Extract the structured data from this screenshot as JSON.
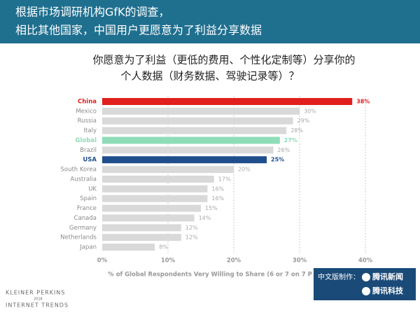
{
  "header": {
    "lines": [
      "根据市场调研机构GfK的调查，",
      "相比其他国家，中国用户更愿意为了利益分享数据"
    ]
  },
  "chart_data": {
    "type": "bar",
    "orientation": "horizontal",
    "title": [
      "你愿意为了利益（更低的费用、个性化定制等）分享你的",
      "个人数据（财务数据、驾驶记录等）？"
    ],
    "categories": [
      "China",
      "Mexico",
      "Russia",
      "Italy",
      "Global",
      "Brazil",
      "USA",
      "South Korea",
      "Australia",
      "UK",
      "Spain",
      "France",
      "Canada",
      "Germany",
      "Netherlands",
      "Japan"
    ],
    "values": [
      38,
      30,
      29,
      28,
      27,
      26,
      25,
      20,
      17,
      16,
      16,
      15,
      14,
      12,
      12,
      8
    ],
    "value_labels": [
      "38%",
      "30%",
      "29%",
      "28%",
      "27%",
      "26%",
      "25%",
      "20%",
      "17%",
      "16%",
      "16%",
      "15%",
      "14%",
      "12%",
      "12%",
      "8%"
    ],
    "color": "#d9d9d9",
    "colors": [
      "#e0201f",
      "#d9d9d9",
      "#d9d9d9",
      "#d9d9d9",
      "#8fdcb8",
      "#d9d9d9",
      "#1f4e8c",
      "#d9d9d9",
      "#d9d9d9",
      "#d9d9d9",
      "#d9d9d9",
      "#d9d9d9",
      "#d9d9d9",
      "#d9d9d9",
      "#d9d9d9",
      "#d9d9d9"
    ],
    "xlim": [
      0,
      40
    ],
    "xticks": [
      {
        "value": 0,
        "label": "0%"
      },
      {
        "value": 10,
        "label": "10%"
      },
      {
        "value": 20,
        "label": "20%"
      },
      {
        "value": 30,
        "label": "30%"
      },
      {
        "value": 40,
        "label": "40%"
      }
    ],
    "xlabel": "% of Global Respondents Very Willing to Share (6 or 7 on 7 P",
    "grid": true
  },
  "footer": {
    "brand": "KLEINER PERKINS",
    "year": "2016",
    "report": "INTERNET TRENDS",
    "credit": "中文版制作：",
    "partners": [
      "腾讯新闻",
      "腾讯科技"
    ]
  }
}
